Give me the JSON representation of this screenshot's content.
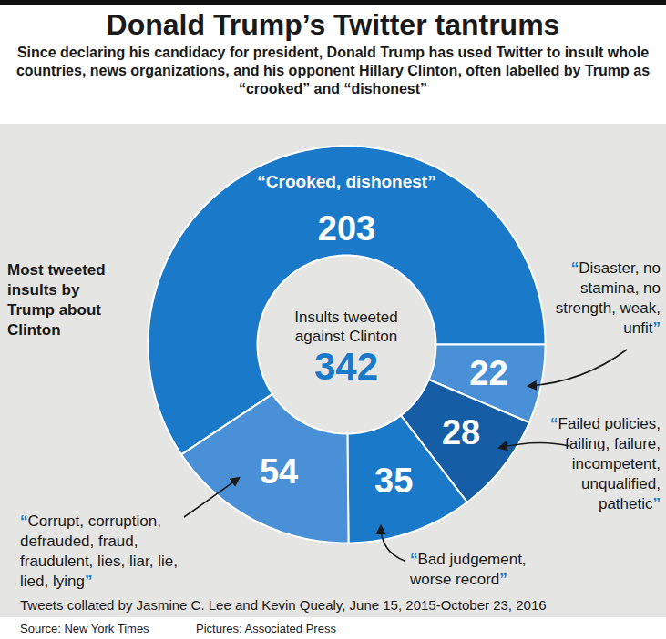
{
  "chart_data": {
    "type": "donut",
    "title": "Donald Trump’s Twitter tantrums",
    "subtitle": "Since declaring his candidacy for president, Donald Trump has used Twitter to insult whole countries, news organizations, and his opponent Hillary Clinton, often labelled by Trump as “crooked” and “dishonest”",
    "annotation": "Most tweeted insults by Trump about Clinton",
    "center_label": "Insults tweeted against Clinton",
    "total": 342,
    "categories": [
      "“Crooked, dishonest”",
      "“Disaster, no stamina, no strength, weak, unfit”",
      "“Failed policies, failing, failure, incompetent, unqualified, pathetic”",
      "“Bad judgement, worse record”",
      "“Corrupt, corruption, defrauded, fraud, fraudulent, lies, liar, lie, lied, lying”"
    ],
    "values": [
      203,
      22,
      28,
      35,
      54
    ],
    "colors": [
      "#1b79c9",
      "#4990d6",
      "#155ea6",
      "#1b79c9",
      "#4990d6"
    ],
    "data_labels": true,
    "note": "Tweets collated by Jasmine C. Lee and Kevin Quealy, June 15, 2015-October 23, 2016",
    "source": "Source: New York Times",
    "credit": "Pictures: Associated Press"
  }
}
